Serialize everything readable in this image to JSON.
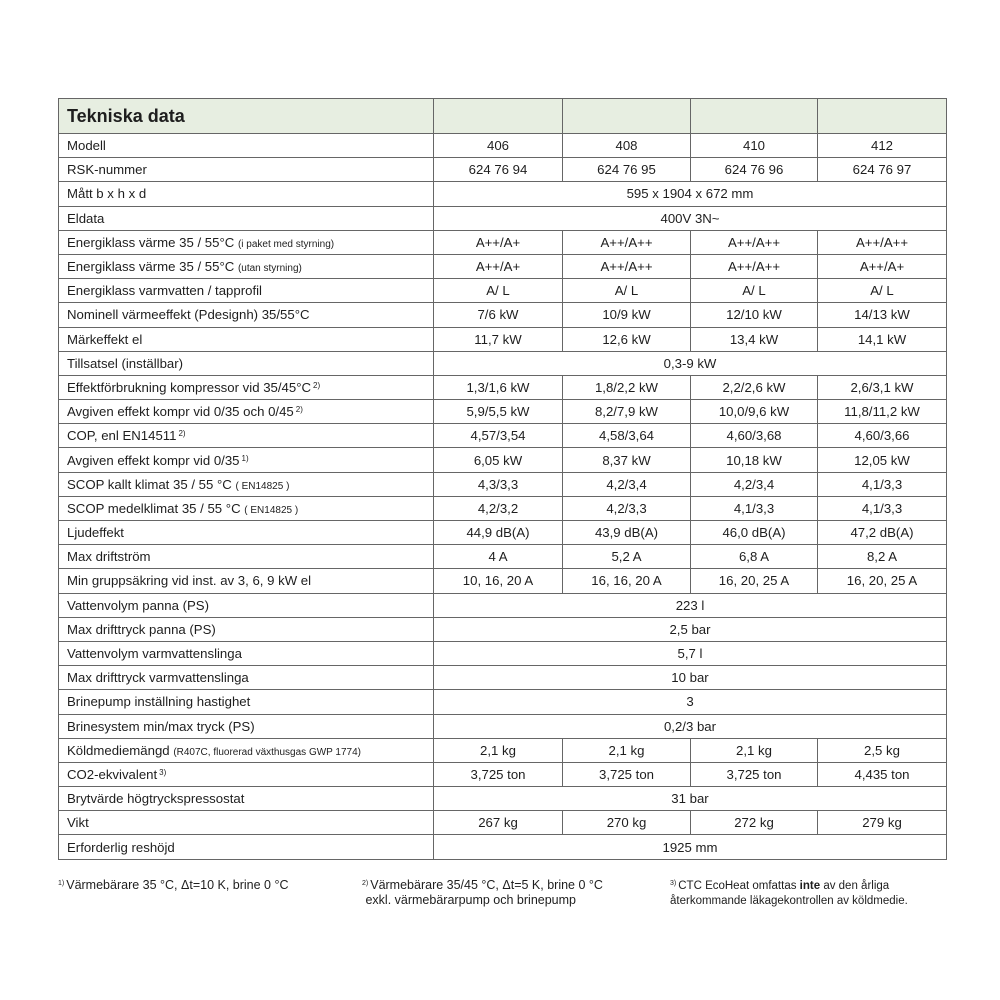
{
  "title": "Tekniska data",
  "colors": {
    "header_bg": "#e7eee1",
    "border": "#666666"
  },
  "rows": [
    {
      "label": "Modell",
      "values": [
        "406",
        "408",
        "410",
        "412"
      ]
    },
    {
      "label": "RSK-nummer",
      "values": [
        "624 76 94",
        "624 76 95",
        "624 76 96",
        "624 76 97"
      ]
    },
    {
      "label": "Mått b x h x d",
      "values": [
        "595 x 1904 x 672 mm"
      ]
    },
    {
      "label": "Eldata",
      "values": [
        "400V 3N~"
      ]
    },
    {
      "label": "Energiklass värme 35 / 55°C",
      "small": "(i paket med styrning)",
      "values": [
        "A++/A+",
        "A++/A++",
        "A++/A++",
        "A++/A++"
      ]
    },
    {
      "label": "Energiklass värme 35 / 55°C",
      "small": "(utan styrning)",
      "values": [
        "A++/A+",
        "A++/A++",
        "A++/A++",
        "A++/A+"
      ]
    },
    {
      "label": "Energiklass varmvatten / tapprofil",
      "values": [
        "A/ L",
        "A/ L",
        "A/ L",
        "A/ L"
      ]
    },
    {
      "label": "Nominell värmeeffekt (Pdesignh) 35/55°C",
      "values": [
        "7/6 kW",
        "10/9 kW",
        "12/10 kW",
        "14/13 kW"
      ]
    },
    {
      "label": "Märkeffekt el",
      "values": [
        "11,7 kW",
        "12,6 kW",
        "13,4 kW",
        "14,1 kW"
      ]
    },
    {
      "label": "Tillsatsel (inställbar)",
      "values": [
        "0,3-9 kW"
      ]
    },
    {
      "label": "Effektförbrukning kompressor vid 35/45°C",
      "sup": "2)",
      "values": [
        "1,3/1,6 kW",
        "1,8/2,2 kW",
        "2,2/2,6 kW",
        "2,6/3,1 kW"
      ]
    },
    {
      "label": "Avgiven effekt kompr vid 0/35 och 0/45",
      "sup": "2)",
      "values": [
        "5,9/5,5 kW",
        "8,2/7,9 kW",
        "10,0/9,6 kW",
        "11,8/11,2 kW"
      ]
    },
    {
      "label": "COP, enl EN14511",
      "sup": "2)",
      "values": [
        "4,57/3,54",
        "4,58/3,64",
        "4,60/3,68",
        "4,60/3,66"
      ]
    },
    {
      "label": "Avgiven effekt kompr vid 0/35",
      "sup": "1)",
      "values": [
        "6,05 kW",
        "8,37 kW",
        "10,18 kW",
        "12,05 kW"
      ]
    },
    {
      "label": "SCOP kallt klimat 35 / 55 °C",
      "small": "( EN14825 )",
      "values": [
        "4,3/3,3",
        "4,2/3,4",
        "4,2/3,4",
        "4,1/3,3"
      ]
    },
    {
      "label": "SCOP medelklimat 35 / 55 °C",
      "small": "( EN14825 )",
      "values": [
        "4,2/3,2",
        "4,2/3,3",
        "4,1/3,3",
        "4,1/3,3"
      ]
    },
    {
      "label": "Ljudeffekt",
      "values": [
        "44,9 dB(A)",
        "43,9 dB(A)",
        "46,0 dB(A)",
        "47,2 dB(A)"
      ]
    },
    {
      "label": "Max driftström",
      "values": [
        "4 A",
        "5,2 A",
        "6,8 A",
        "8,2 A"
      ]
    },
    {
      "label": "Min gruppsäkring vid inst. av 3, 6, 9 kW el",
      "values": [
        "10, 16, 20 A",
        "16, 16, 20 A",
        "16, 20, 25 A",
        "16, 20, 25 A"
      ]
    },
    {
      "label": "Vattenvolym panna (PS)",
      "values": [
        "223 l"
      ]
    },
    {
      "label": "Max drifttryck panna (PS)",
      "values": [
        "2,5 bar"
      ]
    },
    {
      "label": "Vattenvolym varmvattenslinga",
      "values": [
        "5,7 l"
      ]
    },
    {
      "label": "Max drifttryck varmvattenslinga",
      "values": [
        "10 bar"
      ]
    },
    {
      "label": "Brinepump inställning hastighet",
      "values": [
        "3"
      ]
    },
    {
      "label": "Brinesystem min/max tryck  (PS)",
      "values": [
        "0,2/3 bar"
      ]
    },
    {
      "label": "Köldmediemängd",
      "small": "(R407C, fluorerad växthusgas GWP 1774)",
      "values": [
        "2,1 kg",
        "2,1 kg",
        "2,1 kg",
        "2,5 kg"
      ]
    },
    {
      "label": "CO2-ekvivalent",
      "sup": "3)",
      "values": [
        "3,725 ton",
        "3,725 ton",
        "3,725 ton",
        "4,435 ton"
      ]
    },
    {
      "label": "Brytvärde högtryckspressostat",
      "values": [
        "31 bar"
      ]
    },
    {
      "label": "Vikt",
      "values": [
        "267 kg",
        "270 kg",
        "272 kg",
        "279 kg"
      ]
    },
    {
      "label": "Erforderlig reshöjd",
      "values": [
        "1925 mm"
      ]
    }
  ],
  "footnotes": {
    "f1_mark": "1)",
    "f1": "Värmebärare 35 °C, Δt=10 K, brine 0 °C",
    "f2_mark": "2)",
    "f2_line1": "Värmebärare 35/45 °C, Δt=5 K, brine 0 °C",
    "f2_line2": "exkl. värmebärarpump och brinepump",
    "f3_mark": "3)",
    "f3_pre": "CTC EcoHeat omfattas ",
    "f3_bold": "inte",
    "f3_post": " av den årliga",
    "f3_line2": "återkommande läkagekontrollen av köldmedie."
  }
}
